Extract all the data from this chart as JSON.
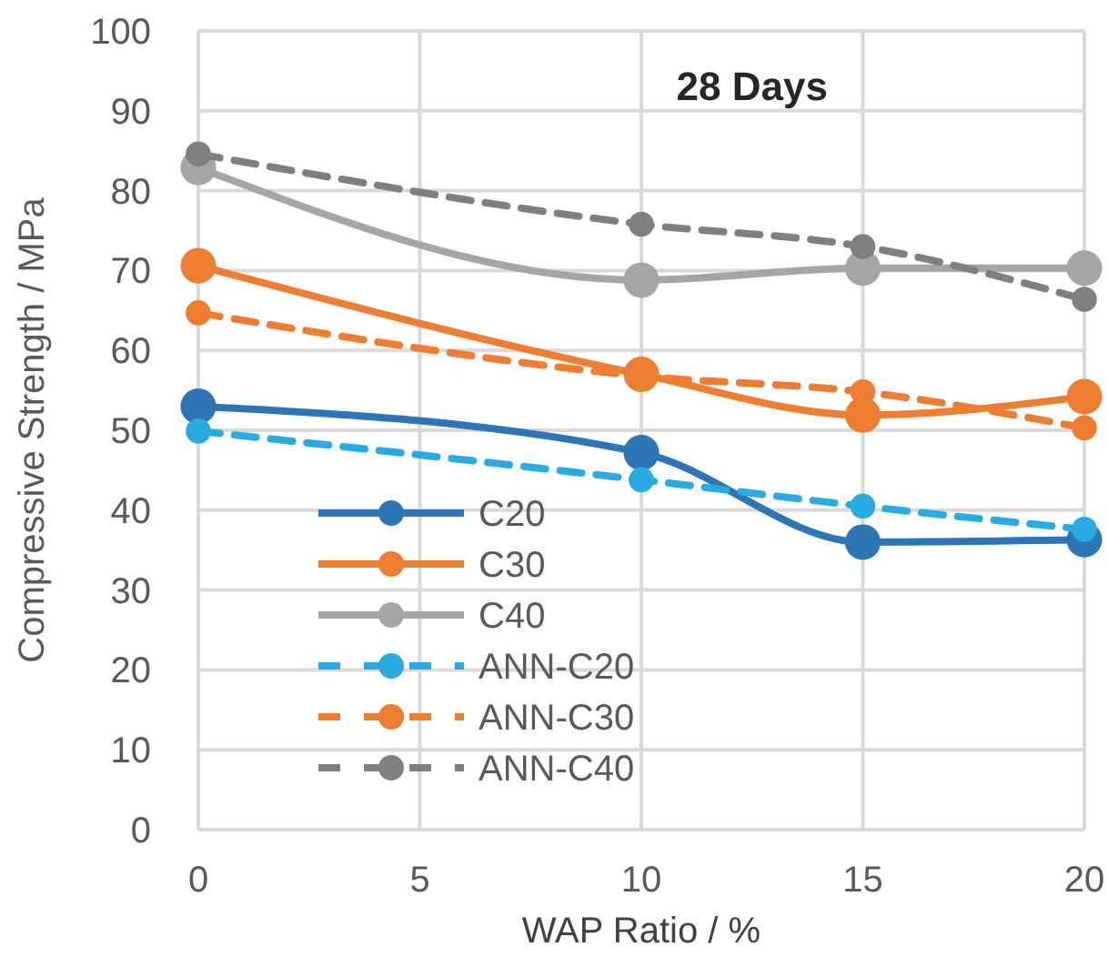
{
  "chart_data": {
    "type": "line",
    "title": "28 Days",
    "xlabel": "WAP Ratio / %",
    "ylabel": "Compressive Strength / MPa",
    "x": [
      0,
      10,
      15,
      20
    ],
    "xlim": [
      0,
      20
    ],
    "xticks": [
      0,
      5,
      10,
      15,
      20
    ],
    "ylim": [
      0,
      100
    ],
    "yticks": [
      0,
      10,
      20,
      30,
      40,
      50,
      60,
      70,
      80,
      90,
      100
    ],
    "grid": true,
    "legend": "bottom left",
    "marker": "circle",
    "series": [
      {
        "name": "C20",
        "color": "#2e75b6",
        "line_style": "solid",
        "values": [
          53,
          47.2,
          36,
          36.3
        ]
      },
      {
        "name": "C30",
        "color": "#ed7d31",
        "line_style": "solid",
        "values": [
          70.6,
          57,
          51.9,
          54.2
        ]
      },
      {
        "name": "C40",
        "color": "#a5a5a5",
        "line_style": "solid",
        "values": [
          82.9,
          68.8,
          70.3,
          70.3
        ]
      },
      {
        "name": "ANN-C20",
        "color": "#29abe2",
        "line_style": "dashed",
        "values": [
          49.9,
          43.8,
          40.5,
          37.6
        ]
      },
      {
        "name": "ANN-C30",
        "color": "#ed7d31",
        "line_style": "dashed",
        "values": [
          64.7,
          56.8,
          54.8,
          50.3
        ]
      },
      {
        "name": "ANN-C40",
        "color": "#7f7f7f",
        "line_style": "dashed",
        "values": [
          84.6,
          75.8,
          73,
          66.4
        ]
      }
    ]
  }
}
